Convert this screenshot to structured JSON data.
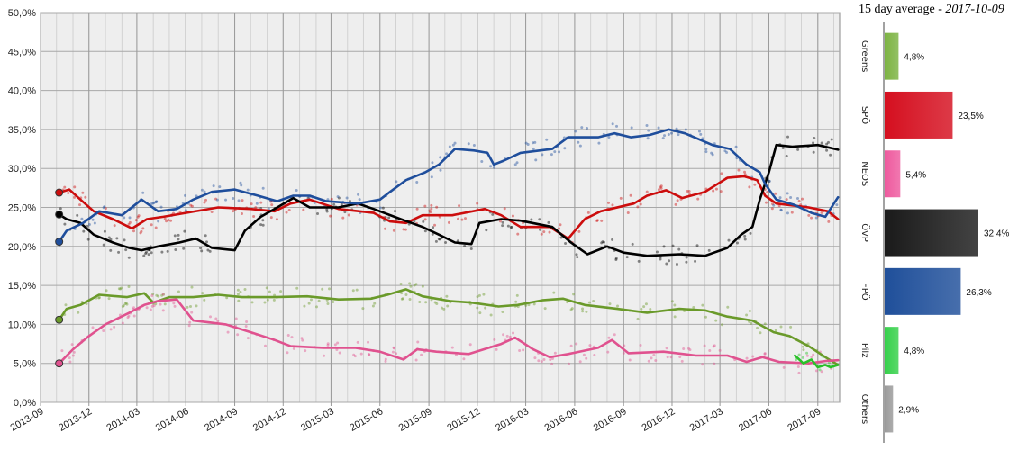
{
  "chart_data": [
    {
      "type": "line",
      "xlim": [
        "2013-09-01",
        "2017-10-12"
      ],
      "ylim": [
        0,
        50
      ],
      "y_ticks": [
        "0,0%",
        "5,0%",
        "10,0%",
        "15,0%",
        "20,0%",
        "25,0%",
        "30,0%",
        "35,0%",
        "40,0%",
        "45,0%",
        "50,0%"
      ],
      "x_ticks": [
        "2013-09",
        "2013-12",
        "2014-03",
        "2014-06",
        "2014-09",
        "2014-12",
        "2015-03",
        "2015-06",
        "2015-09",
        "2015-12",
        "2016-03",
        "2016-06",
        "2016-09",
        "2016-12",
        "2017-03",
        "2017-06",
        "2017-09"
      ],
      "grid": true,
      "series": [
        {
          "color": "#6a9a2a",
          "values": [
            [
              "2013-10-06",
              10.6
            ],
            [
              "2013-10-20",
              12.0
            ],
            [
              "2013-11-15",
              12.5
            ],
            [
              "2013-12-20",
              13.8
            ],
            [
              "2014-02-10",
              13.5
            ],
            [
              "2014-03-15",
              14.0
            ],
            [
              "2014-04-01",
              12.8
            ],
            [
              "2014-05-01",
              13.5
            ],
            [
              "2014-06-15",
              13.5
            ],
            [
              "2014-08-01",
              13.8
            ],
            [
              "2014-09-15",
              13.5
            ],
            [
              "2014-11-15",
              13.5
            ],
            [
              "2015-01-15",
              13.6
            ],
            [
              "2015-03-15",
              13.2
            ],
            [
              "2015-05-15",
              13.3
            ],
            [
              "2015-06-15",
              13.8
            ],
            [
              "2015-07-20",
              14.5
            ],
            [
              "2015-08-20",
              13.6
            ],
            [
              "2015-10-10",
              13.0
            ],
            [
              "2015-11-20",
              12.8
            ],
            [
              "2016-01-10",
              12.3
            ],
            [
              "2016-02-15",
              12.5
            ],
            [
              "2016-04-01",
              13.1
            ],
            [
              "2016-05-10",
              13.3
            ],
            [
              "2016-06-20",
              12.5
            ],
            [
              "2016-08-20",
              12.0
            ],
            [
              "2016-10-15",
              11.5
            ],
            [
              "2016-12-15",
              12.0
            ],
            [
              "2017-02-01",
              11.8
            ],
            [
              "2017-03-15",
              11.0
            ],
            [
              "2017-05-01",
              10.5
            ],
            [
              "2017-06-10",
              9.0
            ],
            [
              "2017-07-10",
              8.5
            ],
            [
              "2017-08-15",
              7.2
            ],
            [
              "2017-09-15",
              5.8
            ],
            [
              "2017-10-09",
              4.8
            ]
          ]
        },
        {
          "color": "#e0528f",
          "values": [
            [
              "2013-10-06",
              5.0
            ],
            [
              "2013-11-01",
              6.8
            ],
            [
              "2013-12-01",
              8.5
            ],
            [
              "2014-01-01",
              10.0
            ],
            [
              "2014-02-15",
              11.5
            ],
            [
              "2014-03-15",
              12.5
            ],
            [
              "2014-04-10",
              13.0
            ],
            [
              "2014-05-15",
              13.2
            ],
            [
              "2014-06-15",
              10.5
            ],
            [
              "2014-08-15",
              10.0
            ],
            [
              "2014-10-01",
              9.0
            ],
            [
              "2014-11-15",
              8.0
            ],
            [
              "2014-12-15",
              7.2
            ],
            [
              "2015-02-15",
              7.0
            ],
            [
              "2015-04-15",
              7.0
            ],
            [
              "2015-06-01",
              6.5
            ],
            [
              "2015-07-15",
              5.5
            ],
            [
              "2015-08-10",
              6.8
            ],
            [
              "2015-09-15",
              6.5
            ],
            [
              "2015-11-15",
              6.2
            ],
            [
              "2016-01-15",
              7.5
            ],
            [
              "2016-02-10",
              8.3
            ],
            [
              "2016-03-15",
              6.8
            ],
            [
              "2016-04-15",
              5.8
            ],
            [
              "2016-05-20",
              6.2
            ],
            [
              "2016-07-15",
              7.0
            ],
            [
              "2016-08-10",
              8.0
            ],
            [
              "2016-09-10",
              6.3
            ],
            [
              "2016-11-15",
              6.5
            ],
            [
              "2017-01-15",
              6.0
            ],
            [
              "2017-03-15",
              6.0
            ],
            [
              "2017-04-20",
              5.2
            ],
            [
              "2017-05-20",
              5.8
            ],
            [
              "2017-06-20",
              5.2
            ],
            [
              "2017-08-15",
              5.0
            ],
            [
              "2017-09-15",
              5.3
            ],
            [
              "2017-10-09",
              5.4
            ]
          ]
        },
        {
          "color": "#29c029",
          "values": [
            [
              "2017-07-20",
              6.0
            ],
            [
              "2017-08-05",
              5.0
            ],
            [
              "2017-08-20",
              5.5
            ],
            [
              "2017-09-01",
              4.5
            ],
            [
              "2017-09-15",
              4.8
            ],
            [
              "2017-09-25",
              4.5
            ],
            [
              "2017-10-09",
              4.8
            ]
          ]
        },
        {
          "color": "#cc0d0d",
          "values": [
            [
              "2013-10-06",
              26.9
            ],
            [
              "2013-10-25",
              27.3
            ],
            [
              "2013-11-15",
              26.0
            ],
            [
              "2013-12-10",
              24.5
            ],
            [
              "2014-01-15",
              23.5
            ],
            [
              "2014-02-20",
              22.3
            ],
            [
              "2014-03-20",
              23.5
            ],
            [
              "2014-04-20",
              23.8
            ],
            [
              "2014-06-01",
              24.3
            ],
            [
              "2014-08-01",
              25.0
            ],
            [
              "2014-10-01",
              24.8
            ],
            [
              "2014-11-15",
              24.5
            ],
            [
              "2014-12-15",
              25.5
            ],
            [
              "2015-01-20",
              26.0
            ],
            [
              "2015-03-15",
              24.8
            ],
            [
              "2015-05-20",
              24.3
            ],
            [
              "2015-06-20",
              23.2
            ],
            [
              "2015-07-20",
              23.0
            ],
            [
              "2015-08-20",
              24.0
            ],
            [
              "2015-10-15",
              24.0
            ],
            [
              "2015-12-15",
              24.8
            ],
            [
              "2016-01-15",
              24.0
            ],
            [
              "2016-02-20",
              22.5
            ],
            [
              "2016-04-15",
              22.5
            ],
            [
              "2016-05-20",
              21.0
            ],
            [
              "2016-06-20",
              23.5
            ],
            [
              "2016-07-20",
              24.5
            ],
            [
              "2016-09-20",
              25.5
            ],
            [
              "2016-10-15",
              26.5
            ],
            [
              "2016-11-20",
              27.2
            ],
            [
              "2016-12-20",
              26.2
            ],
            [
              "2017-02-01",
              27.0
            ],
            [
              "2017-03-15",
              28.8
            ],
            [
              "2017-04-15",
              29.0
            ],
            [
              "2017-05-10",
              28.5
            ],
            [
              "2017-05-25",
              26.5
            ],
            [
              "2017-06-15",
              25.5
            ],
            [
              "2017-08-15",
              25.0
            ],
            [
              "2017-09-20",
              24.5
            ],
            [
              "2017-10-09",
              23.5
            ]
          ]
        },
        {
          "color": "#000000",
          "values": [
            [
              "2013-10-06",
              24.1
            ],
            [
              "2013-10-20",
              23.5
            ],
            [
              "2013-11-15",
              23.0
            ],
            [
              "2013-12-10",
              21.5
            ],
            [
              "2014-01-15",
              20.5
            ],
            [
              "2014-02-15",
              19.8
            ],
            [
              "2014-03-10",
              19.5
            ],
            [
              "2014-04-10",
              20.0
            ],
            [
              "2014-05-20",
              20.5
            ],
            [
              "2014-06-20",
              21.0
            ],
            [
              "2014-07-20",
              19.8
            ],
            [
              "2014-09-01",
              19.5
            ],
            [
              "2014-09-20",
              22.0
            ],
            [
              "2014-10-20",
              23.8
            ],
            [
              "2014-11-20",
              25.0
            ],
            [
              "2014-12-20",
              26.2
            ],
            [
              "2015-01-20",
              25.0
            ],
            [
              "2015-03-15",
              25.0
            ],
            [
              "2015-04-20",
              25.5
            ],
            [
              "2015-05-20",
              24.8
            ],
            [
              "2015-07-10",
              23.5
            ],
            [
              "2015-08-20",
              22.5
            ],
            [
              "2015-09-20",
              21.5
            ],
            [
              "2015-10-20",
              20.5
            ],
            [
              "2015-11-20",
              20.3
            ],
            [
              "2015-12-05",
              23.0
            ],
            [
              "2016-01-15",
              23.5
            ],
            [
              "2016-02-20",
              23.3
            ],
            [
              "2016-04-20",
              22.5
            ],
            [
              "2016-05-25",
              20.5
            ],
            [
              "2016-06-25",
              19.0
            ],
            [
              "2016-08-01",
              20.0
            ],
            [
              "2016-09-01",
              19.2
            ],
            [
              "2016-10-15",
              18.8
            ],
            [
              "2016-12-15",
              19.0
            ],
            [
              "2017-02-01",
              18.8
            ],
            [
              "2017-03-15",
              19.8
            ],
            [
              "2017-04-10",
              21.5
            ],
            [
              "2017-05-01",
              22.5
            ],
            [
              "2017-05-15",
              26.0
            ],
            [
              "2017-06-01",
              29.5
            ],
            [
              "2017-06-15",
              33.0
            ],
            [
              "2017-07-15",
              32.8
            ],
            [
              "2017-09-01",
              33.0
            ],
            [
              "2017-10-09",
              32.4
            ]
          ]
        },
        {
          "color": "#1f4e9c",
          "values": [
            [
              "2013-10-06",
              20.6
            ],
            [
              "2013-10-20",
              22.0
            ],
            [
              "2013-11-20",
              23.0
            ],
            [
              "2013-12-20",
              24.5
            ],
            [
              "2014-02-01",
              24.0
            ],
            [
              "2014-03-10",
              26.0
            ],
            [
              "2014-04-10",
              24.5
            ],
            [
              "2014-05-15",
              24.8
            ],
            [
              "2014-06-15",
              26.0
            ],
            [
              "2014-07-20",
              27.0
            ],
            [
              "2014-09-01",
              27.3
            ],
            [
              "2014-10-15",
              26.5
            ],
            [
              "2014-11-20",
              25.8
            ],
            [
              "2014-12-20",
              26.5
            ],
            [
              "2015-01-20",
              26.5
            ],
            [
              "2015-02-20",
              25.8
            ],
            [
              "2015-04-20",
              25.5
            ],
            [
              "2015-06-01",
              26.0
            ],
            [
              "2015-06-20",
              27.0
            ],
            [
              "2015-07-20",
              28.5
            ],
            [
              "2015-08-25",
              29.5
            ],
            [
              "2015-09-20",
              30.5
            ],
            [
              "2015-10-20",
              32.5
            ],
            [
              "2015-11-25",
              32.3
            ],
            [
              "2015-12-20",
              32.0
            ],
            [
              "2016-01-01",
              30.5
            ],
            [
              "2016-01-20",
              31.0
            ],
            [
              "2016-02-20",
              32.0
            ],
            [
              "2016-04-20",
              32.5
            ],
            [
              "2016-05-20",
              34.0
            ],
            [
              "2016-07-15",
              34.0
            ],
            [
              "2016-08-15",
              34.5
            ],
            [
              "2016-09-15",
              34.0
            ],
            [
              "2016-10-20",
              34.3
            ],
            [
              "2016-11-25",
              35.0
            ],
            [
              "2016-12-25",
              34.5
            ],
            [
              "2017-02-15",
              33.0
            ],
            [
              "2017-03-20",
              32.5
            ],
            [
              "2017-04-20",
              30.5
            ],
            [
              "2017-05-15",
              29.5
            ],
            [
              "2017-05-25",
              28.0
            ],
            [
              "2017-06-15",
              26.0
            ],
            [
              "2017-07-20",
              25.3
            ],
            [
              "2017-08-20",
              24.3
            ],
            [
              "2017-09-15",
              23.8
            ],
            [
              "2017-10-09",
              26.3
            ]
          ]
        }
      ],
      "start_markers": [
        {
          "color": "#cc0d0d",
          "date": "2013-10-06",
          "value": 26.9
        },
        {
          "color": "#000000",
          "date": "2013-10-06",
          "value": 24.1
        },
        {
          "color": "#1f4e9c",
          "date": "2013-10-06",
          "value": 20.6
        },
        {
          "color": "#6a9a2a",
          "date": "2013-10-06",
          "value": 10.6
        },
        {
          "color": "#e0528f",
          "date": "2013-10-06",
          "value": 5.0
        }
      ]
    },
    {
      "type": "bar",
      "orientation": "horizontal",
      "title": "15 day average - ",
      "date": "2017-10-09",
      "categories": [
        "Greens",
        "SPÖ",
        "NEOS",
        "ÖVP",
        "FPÖ",
        "Pilz",
        "Others"
      ],
      "values": [
        4.8,
        23.5,
        5.4,
        32.4,
        26.3,
        4.8,
        2.9
      ],
      "value_labels": [
        "4,8%",
        "23,5%",
        "5,4%",
        "32,4%",
        "26,3%",
        "4,8%",
        "2,9%"
      ],
      "colors": [
        "#7cb342",
        "#d50f1f",
        "#ee5a9e",
        "#1a1a1a",
        "#1f4f9a",
        "#35d04a",
        "#9a9a9a"
      ]
    }
  ]
}
